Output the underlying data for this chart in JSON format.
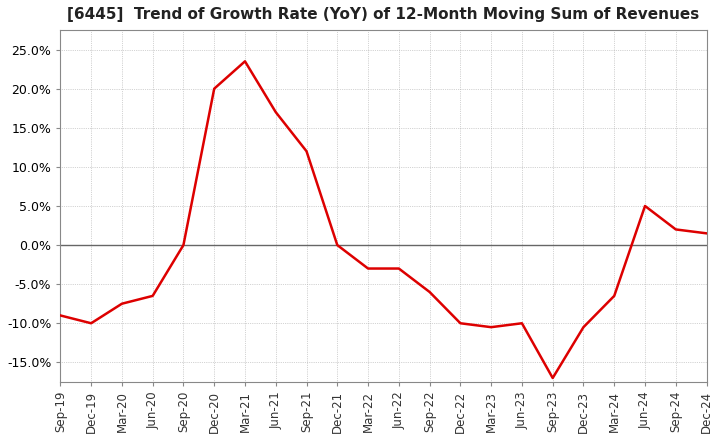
{
  "title": "[6445]  Trend of Growth Rate (YoY) of 12-Month Moving Sum of Revenues",
  "title_fontsize": 11,
  "line_color": "#dd0000",
  "background_color": "#ffffff",
  "grid_color": "#aaaaaa",
  "ylim": [
    -0.175,
    0.275
  ],
  "yticks": [
    -0.15,
    -0.1,
    -0.05,
    0.0,
    0.05,
    0.1,
    0.15,
    0.2,
    0.25
  ],
  "dates": [
    "Sep-19",
    "Dec-19",
    "Mar-20",
    "Jun-20",
    "Sep-20",
    "Dec-20",
    "Mar-21",
    "Jun-21",
    "Sep-21",
    "Dec-21",
    "Mar-22",
    "Jun-22",
    "Sep-22",
    "Dec-22",
    "Mar-23",
    "Jun-23",
    "Sep-23",
    "Dec-23",
    "Mar-24",
    "Jun-24",
    "Sep-24",
    "Dec-24"
  ],
  "values": [
    -0.09,
    -0.1,
    -0.075,
    -0.065,
    0.0,
    0.2,
    0.235,
    0.17,
    0.12,
    0.0,
    -0.03,
    -0.03,
    -0.06,
    -0.1,
    -0.105,
    -0.1,
    -0.17,
    -0.105,
    -0.065,
    0.05,
    0.02,
    0.015
  ],
  "zero_line_color": "#666666",
  "tick_fontsize": 8.5,
  "ylabel_fontsize": 9
}
